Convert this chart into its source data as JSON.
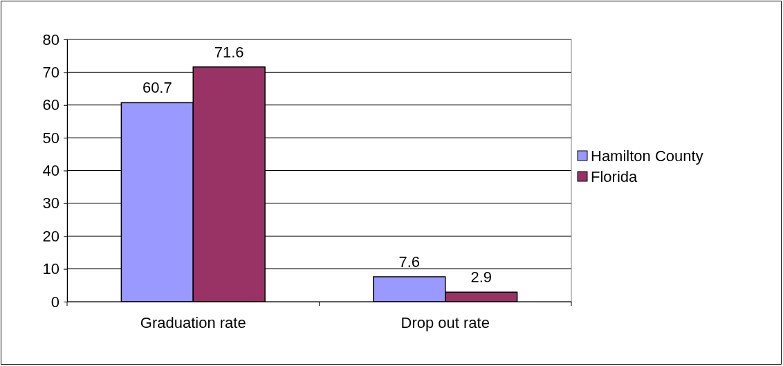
{
  "chart_data": {
    "type": "bar",
    "categories": [
      "Graduation rate",
      "Drop out rate"
    ],
    "series": [
      {
        "name": "Hamilton County",
        "color": "#9999ff",
        "values": [
          60.7,
          7.6
        ]
      },
      {
        "name": "Florida",
        "color": "#993366",
        "values": [
          71.6,
          2.9
        ]
      }
    ],
    "ylim": [
      0,
      80
    ],
    "yticks": [
      0,
      10,
      20,
      30,
      40,
      50,
      60,
      70,
      80
    ],
    "grid": "y",
    "legend": "right",
    "data_labels": true
  }
}
